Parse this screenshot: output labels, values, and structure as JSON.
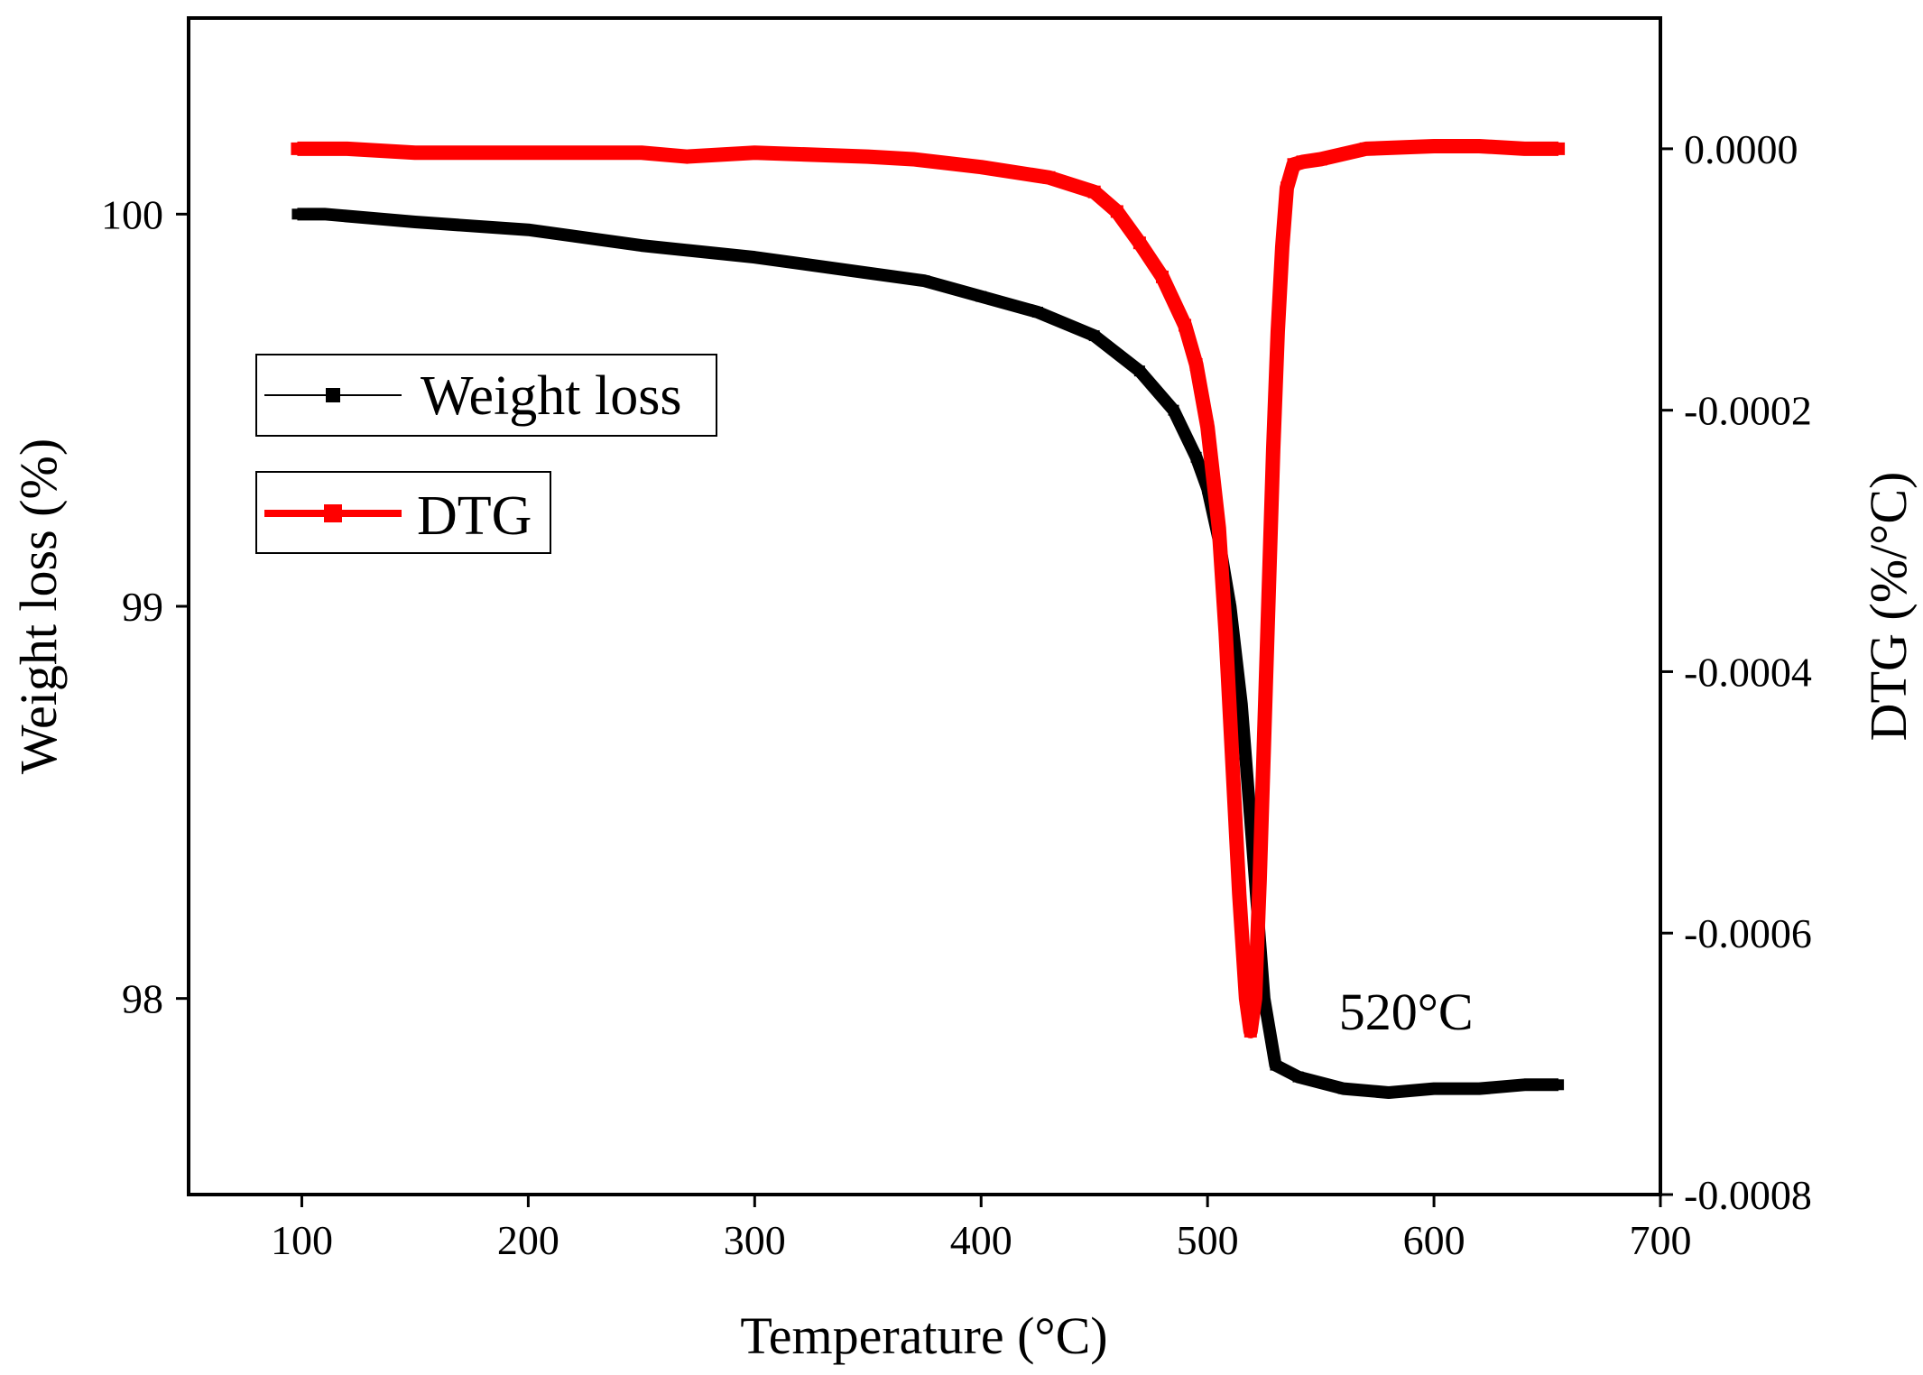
{
  "chart_data": {
    "type": "line",
    "title": "",
    "xlabel": "Temperature (°C)",
    "ylabel_left": "Weight loss (%)",
    "ylabel_right": "DTG (%/°C)",
    "xlim": [
      50,
      700
    ],
    "ylim_left": [
      97.5,
      100.5
    ],
    "ylim_right": [
      -0.0008,
      0.0001
    ],
    "xticks": [
      100,
      200,
      300,
      400,
      500,
      600,
      700
    ],
    "xtick_labels": [
      "100",
      "200",
      "300",
      "400",
      "500",
      "600",
      "700"
    ],
    "yticks_left": [
      98,
      99,
      100
    ],
    "ytick_labels_left": [
      "98",
      "99",
      "100"
    ],
    "yticks_right": [
      -0.0008,
      -0.0006,
      -0.0004,
      -0.0002,
      0
    ],
    "ytick_labels_right": [
      "-0.0008",
      "-0.0006",
      "-0.0004",
      "-0.0002",
      "0.0000"
    ],
    "legend_position": "left-middle",
    "grid": false,
    "annotation": {
      "text": "520°C",
      "x": 558,
      "y_right": -0.00066
    },
    "series": [
      {
        "name": "Weight loss",
        "axis": "left",
        "color": "#000000",
        "x": [
          98,
          110,
          150,
          200,
          250,
          300,
          350,
          375,
          400,
          425,
          450,
          470,
          485,
          495,
          500,
          505,
          510,
          515,
          520,
          525,
          530,
          540,
          560,
          580,
          600,
          620,
          640,
          655
        ],
        "y": [
          100.0,
          100.0,
          99.98,
          99.96,
          99.92,
          99.89,
          99.85,
          99.83,
          99.79,
          99.75,
          99.69,
          99.6,
          99.5,
          99.38,
          99.3,
          99.17,
          99.0,
          98.75,
          98.38,
          98.0,
          97.83,
          97.8,
          97.77,
          97.76,
          97.77,
          97.77,
          97.78,
          97.78
        ]
      },
      {
        "name": "DTG",
        "axis": "right",
        "color": "#ff0000",
        "x": [
          98,
          120,
          150,
          200,
          250,
          270,
          300,
          350,
          370,
          400,
          430,
          450,
          460,
          470,
          480,
          490,
          495,
          500,
          505,
          508,
          511,
          514,
          517,
          519,
          521,
          523,
          525,
          527,
          529,
          531,
          533,
          535,
          538,
          542,
          550,
          570,
          600,
          620,
          640,
          655
        ],
        "y": [
          0.0,
          0.0,
          -3e-06,
          -3e-06,
          -3e-06,
          -6e-06,
          -3e-06,
          -6e-06,
          -8e-06,
          -1.4e-05,
          -2.2e-05,
          -3.3e-05,
          -4.8e-05,
          -7.2e-05,
          -9.8e-05,
          -0.000135,
          -0.000165,
          -0.000213,
          -0.00029,
          -0.00037,
          -0.00047,
          -0.00057,
          -0.00065,
          -0.000675,
          -0.00065,
          -0.00056,
          -0.00045,
          -0.00034,
          -0.00023,
          -0.00014,
          -7.5e-05,
          -3e-05,
          -1.2e-05,
          -1e-05,
          -8e-06,
          0.0,
          2e-06,
          2e-06,
          0.0,
          0.0
        ]
      }
    ]
  }
}
